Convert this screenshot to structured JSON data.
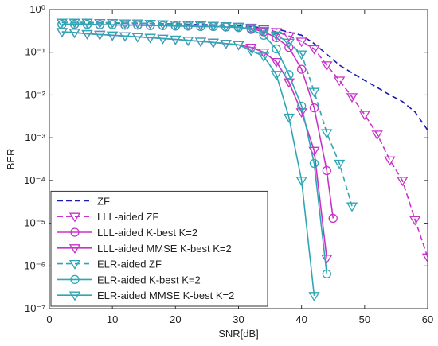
{
  "chart_data": {
    "type": "line",
    "xlabel": "SNR[dB]",
    "ylabel": "BER",
    "xlim": [
      0,
      60
    ],
    "xticks": [
      0,
      10,
      20,
      30,
      40,
      50,
      60
    ],
    "ylim": [
      1e-07,
      1
    ],
    "yscale": "log",
    "yticks": [
      {
        "value": 1e-07,
        "label": "10⁻⁷"
      },
      {
        "value": 1e-06,
        "label": "10⁻⁶"
      },
      {
        "value": 1e-05,
        "label": "10⁻⁵"
      },
      {
        "value": 0.0001,
        "label": "10⁻⁴"
      },
      {
        "value": 0.001,
        "label": "10⁻³"
      },
      {
        "value": 0.01,
        "label": "10⁻²"
      },
      {
        "value": 0.1,
        "label": "10⁻¹"
      },
      {
        "value": 1,
        "label": "10⁰"
      }
    ],
    "grid": false,
    "legend": "lower left",
    "series": [
      {
        "name": "ZF",
        "color": "#1a1ab4",
        "linestyle": "dashed",
        "marker": null,
        "x": [
          2,
          10,
          20,
          30,
          36,
          40,
          42,
          44,
          46,
          48,
          50,
          52,
          54,
          56,
          58,
          60
        ],
        "values": [
          0.5,
          0.48,
          0.46,
          0.42,
          0.35,
          0.25,
          0.16,
          0.09,
          0.05,
          0.033,
          0.022,
          0.015,
          0.01,
          0.007,
          0.004,
          0.0015
        ]
      },
      {
        "name": "LLL-aided ZF",
        "color": "#c832c8",
        "linestyle": "dashed",
        "marker": "triangle-down",
        "x": [
          2,
          4,
          6,
          8,
          10,
          12,
          14,
          16,
          18,
          20,
          22,
          24,
          26,
          28,
          30,
          32,
          34,
          36,
          38,
          40,
          42,
          44,
          46,
          48,
          50,
          52,
          54,
          56,
          58,
          60
        ],
        "values": [
          0.5,
          0.5,
          0.5,
          0.49,
          0.49,
          0.48,
          0.48,
          0.47,
          0.46,
          0.45,
          0.44,
          0.43,
          0.42,
          0.41,
          0.4,
          0.38,
          0.35,
          0.3,
          0.24,
          0.18,
          0.12,
          0.05,
          0.022,
          0.009,
          0.0035,
          0.0012,
          0.0003,
          0.0001,
          1.2e-05,
          1.6e-06
        ]
      },
      {
        "name": "LLL-aided K-best K=2",
        "color": "#c832c8",
        "linestyle": "solid",
        "marker": "circle",
        "x": [
          2,
          4,
          6,
          8,
          10,
          12,
          14,
          16,
          18,
          20,
          22,
          24,
          26,
          28,
          30,
          32,
          34,
          36,
          38,
          40,
          42,
          44,
          45
        ],
        "values": [
          0.45,
          0.45,
          0.45,
          0.44,
          0.44,
          0.43,
          0.43,
          0.42,
          0.42,
          0.41,
          0.41,
          0.4,
          0.4,
          0.39,
          0.38,
          0.36,
          0.3,
          0.22,
          0.13,
          0.04,
          0.005,
          0.00017,
          1.3e-05
        ]
      },
      {
        "name": "LLL-aided MMSE K-best K=2",
        "color": "#c832c8",
        "linestyle": "solid",
        "marker": "triangle-down",
        "x": [
          2,
          4,
          6,
          8,
          10,
          12,
          14,
          16,
          18,
          20,
          22,
          24,
          26,
          28,
          30,
          32,
          34,
          36,
          38,
          40,
          42,
          44
        ],
        "values": [
          0.3,
          0.29,
          0.27,
          0.26,
          0.25,
          0.24,
          0.23,
          0.22,
          0.21,
          0.2,
          0.19,
          0.18,
          0.17,
          0.16,
          0.15,
          0.13,
          0.1,
          0.06,
          0.02,
          0.004,
          0.0005,
          1.5e-06
        ]
      },
      {
        "name": "ELR-aided ZF",
        "color": "#2ea6b3",
        "linestyle": "dashed",
        "marker": "triangle-down",
        "x": [
          2,
          4,
          6,
          8,
          10,
          12,
          14,
          16,
          18,
          20,
          22,
          24,
          26,
          28,
          30,
          32,
          34,
          36,
          38,
          40,
          42,
          44,
          46,
          48
        ],
        "values": [
          0.5,
          0.5,
          0.5,
          0.49,
          0.49,
          0.48,
          0.48,
          0.47,
          0.46,
          0.45,
          0.44,
          0.43,
          0.42,
          0.41,
          0.4,
          0.37,
          0.32,
          0.25,
          0.17,
          0.09,
          0.012,
          0.0013,
          0.00025,
          2.5e-05
        ]
      },
      {
        "name": "ELR-aided K-best K=2",
        "color": "#2ea6b3",
        "linestyle": "solid",
        "marker": "circle",
        "x": [
          2,
          4,
          6,
          8,
          10,
          12,
          14,
          16,
          18,
          20,
          22,
          24,
          26,
          28,
          30,
          32,
          34,
          36,
          38,
          40,
          42,
          44
        ],
        "values": [
          0.45,
          0.45,
          0.45,
          0.44,
          0.44,
          0.43,
          0.43,
          0.42,
          0.42,
          0.41,
          0.41,
          0.4,
          0.4,
          0.39,
          0.38,
          0.34,
          0.25,
          0.12,
          0.03,
          0.0055,
          0.00025,
          6.5e-07
        ]
      },
      {
        "name": "ELR-aided MMSE K-best K=2",
        "color": "#2ea6b3",
        "linestyle": "solid",
        "marker": "triangle-down",
        "x": [
          2,
          4,
          6,
          8,
          10,
          12,
          14,
          16,
          18,
          20,
          22,
          24,
          26,
          28,
          30,
          32,
          34,
          36,
          38,
          40,
          42
        ],
        "values": [
          0.3,
          0.29,
          0.27,
          0.26,
          0.25,
          0.24,
          0.23,
          0.22,
          0.21,
          0.2,
          0.19,
          0.18,
          0.17,
          0.16,
          0.15,
          0.11,
          0.08,
          0.03,
          0.003,
          0.0001,
          2e-07
        ]
      }
    ]
  }
}
